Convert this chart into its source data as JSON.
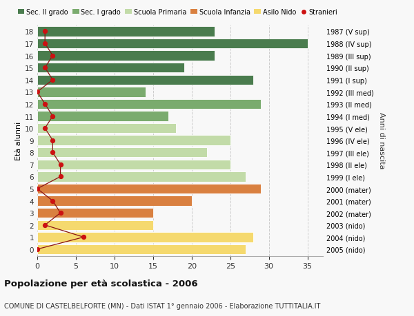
{
  "ages": [
    18,
    17,
    16,
    15,
    14,
    13,
    12,
    11,
    10,
    9,
    8,
    7,
    6,
    5,
    4,
    3,
    2,
    1,
    0
  ],
  "right_labels": [
    "1987 (V sup)",
    "1988 (IV sup)",
    "1989 (III sup)",
    "1990 (II sup)",
    "1991 (I sup)",
    "1992 (III med)",
    "1993 (II med)",
    "1994 (I med)",
    "1995 (V ele)",
    "1996 (IV ele)",
    "1997 (III ele)",
    "1998 (II ele)",
    "1999 (I ele)",
    "2000 (mater)",
    "2001 (mater)",
    "2002 (mater)",
    "2003 (nido)",
    "2004 (nido)",
    "2005 (nido)"
  ],
  "bar_values": [
    23,
    35,
    23,
    19,
    28,
    14,
    29,
    17,
    18,
    25,
    22,
    25,
    27,
    29,
    20,
    15,
    15,
    28,
    27
  ],
  "bar_colors": [
    "#4a7c4e",
    "#4a7c4e",
    "#4a7c4e",
    "#4a7c4e",
    "#4a7c4e",
    "#7aab6e",
    "#7aab6e",
    "#7aab6e",
    "#c2dba8",
    "#c2dba8",
    "#c2dba8",
    "#c2dba8",
    "#c2dba8",
    "#d98040",
    "#d98040",
    "#d98040",
    "#f5d96e",
    "#f5d96e",
    "#f5d96e"
  ],
  "stranieri_values": [
    1,
    1,
    2,
    1,
    2,
    0,
    1,
    2,
    1,
    2,
    2,
    3,
    3,
    0,
    2,
    3,
    1,
    6,
    0
  ],
  "legend_labels": [
    "Sec. II grado",
    "Sec. I grado",
    "Scuola Primaria",
    "Scuola Infanzia",
    "Asilo Nido",
    "Stranieri"
  ],
  "legend_colors": [
    "#4a7c4e",
    "#7aab6e",
    "#c2dba8",
    "#d98040",
    "#f5d96e",
    "#cc1111"
  ],
  "ylabel_left": "Età alunni",
  "ylabel_right": "Anni di nascita",
  "title": "Popolazione per età scolastica - 2006",
  "subtitle": "COMUNE DI CASTELBELFORTE (MN) - Dati ISTAT 1° gennaio 2006 - Elaborazione TUTTITALIA.IT",
  "xlim": [
    0,
    37
  ],
  "ylim": [
    -0.55,
    18.55
  ],
  "background_color": "#f8f8f8",
  "grid_color": "#cccccc",
  "bar_height": 0.82
}
